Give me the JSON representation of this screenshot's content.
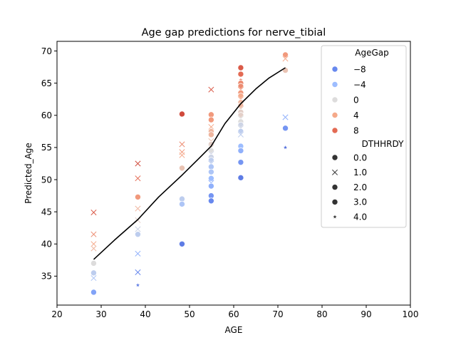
{
  "chart_data": {
    "type": "scatter",
    "title": "Age gap predictions for nerve_tibial",
    "xlabel": "AGE",
    "ylabel": "Predicted_Age",
    "xlim": [
      20,
      100
    ],
    "ylim": [
      30.5,
      71.5
    ],
    "xticks": [
      "20",
      "30",
      "40",
      "50",
      "60",
      "70",
      "80",
      "90",
      "100"
    ],
    "yticks": [
      "35",
      "40",
      "45",
      "50",
      "55",
      "60",
      "65",
      "70"
    ],
    "grid": false,
    "legend_position": "upper right",
    "hue": {
      "title": "AgeGap",
      "entries": [
        {
          "label": "−8",
          "value": -8,
          "color": "#6788ee"
        },
        {
          "label": "−4",
          "value": -4,
          "color": "#9dbdff"
        },
        {
          "label": "0",
          "value": 0,
          "color": "#dddcdc"
        },
        {
          "label": "4",
          "value": 4,
          "color": "#f5a98a"
        },
        {
          "label": "8",
          "value": 8,
          "color": "#e36a53"
        }
      ]
    },
    "style": {
      "title": "DTHHRDY",
      "entries": [
        {
          "label": "0.0",
          "marker": "circle"
        },
        {
          "label": "1.0",
          "marker": "x"
        },
        {
          "label": "2.0",
          "marker": "circle"
        },
        {
          "label": "3.0",
          "marker": "circle"
        },
        {
          "label": "4.0",
          "marker": "star"
        }
      ]
    },
    "points": [
      {
        "x": 28.3,
        "y": 44.9,
        "gap": 9,
        "m": "x"
      },
      {
        "x": 28.3,
        "y": 41.5,
        "gap": 6,
        "m": "x"
      },
      {
        "x": 28.3,
        "y": 40.0,
        "gap": 4,
        "m": "x"
      },
      {
        "x": 28.3,
        "y": 39.3,
        "gap": 3,
        "m": "x"
      },
      {
        "x": 28.3,
        "y": 37.0,
        "gap": 0,
        "m": "circle"
      },
      {
        "x": 28.3,
        "y": 35.5,
        "gap": -2,
        "m": "circle"
      },
      {
        "x": 28.3,
        "y": 34.7,
        "gap": -3,
        "m": "x"
      },
      {
        "x": 28.3,
        "y": 32.5,
        "gap": -6,
        "m": "circle"
      },
      {
        "x": 38.3,
        "y": 52.5,
        "gap": 10,
        "m": "x"
      },
      {
        "x": 38.3,
        "y": 50.2,
        "gap": 8,
        "m": "x"
      },
      {
        "x": 38.3,
        "y": 47.3,
        "gap": 5,
        "m": "circle"
      },
      {
        "x": 38.3,
        "y": 45.5,
        "gap": 3,
        "m": "x"
      },
      {
        "x": 38.3,
        "y": 43.7,
        "gap": 1,
        "m": "x"
      },
      {
        "x": 38.3,
        "y": 42.3,
        "gap": -1,
        "m": "x"
      },
      {
        "x": 38.3,
        "y": 41.5,
        "gap": -2,
        "m": "circle"
      },
      {
        "x": 38.3,
        "y": 38.5,
        "gap": -5,
        "m": "x"
      },
      {
        "x": 38.3,
        "y": 35.6,
        "gap": -8,
        "m": "x"
      },
      {
        "x": 38.3,
        "y": 33.6,
        "gap": -9,
        "m": "star"
      },
      {
        "x": 48.3,
        "y": 60.2,
        "gap": 10,
        "m": "circle"
      },
      {
        "x": 48.3,
        "y": 55.5,
        "gap": 6,
        "m": "x"
      },
      {
        "x": 48.3,
        "y": 54.3,
        "gap": 5,
        "m": "x"
      },
      {
        "x": 48.3,
        "y": 53.8,
        "gap": 4,
        "m": "x"
      },
      {
        "x": 48.3,
        "y": 51.8,
        "gap": 2,
        "m": "circle"
      },
      {
        "x": 48.3,
        "y": 47.0,
        "gap": -2,
        "m": "circle"
      },
      {
        "x": 48.3,
        "y": 46.2,
        "gap": -3,
        "m": "circle"
      },
      {
        "x": 48.3,
        "y": 40.0,
        "gap": -9,
        "m": "circle"
      },
      {
        "x": 54.9,
        "y": 64.0,
        "gap": 9,
        "m": "x"
      },
      {
        "x": 54.9,
        "y": 60.1,
        "gap": 5,
        "m": "circle"
      },
      {
        "x": 54.9,
        "y": 59.3,
        "gap": 5,
        "m": "circle"
      },
      {
        "x": 54.9,
        "y": 58.2,
        "gap": 4,
        "m": "x"
      },
      {
        "x": 54.9,
        "y": 57.5,
        "gap": 3,
        "m": "circle"
      },
      {
        "x": 54.9,
        "y": 57.0,
        "gap": 3,
        "m": "circle"
      },
      {
        "x": 54.9,
        "y": 56.0,
        "gap": 2,
        "m": "x"
      },
      {
        "x": 54.9,
        "y": 55.5,
        "gap": 1,
        "m": "circle"
      },
      {
        "x": 54.9,
        "y": 55.0,
        "gap": 1,
        "m": "x"
      },
      {
        "x": 54.9,
        "y": 54.5,
        "gap": 0,
        "m": "circle"
      },
      {
        "x": 54.9,
        "y": 54.0,
        "gap": -1,
        "m": "x"
      },
      {
        "x": 54.9,
        "y": 53.5,
        "gap": -1,
        "m": "circle"
      },
      {
        "x": 54.9,
        "y": 53.0,
        "gap": -2,
        "m": "circle"
      },
      {
        "x": 54.9,
        "y": 52.5,
        "gap": -2,
        "m": "x"
      },
      {
        "x": 54.9,
        "y": 52.0,
        "gap": -3,
        "m": "circle"
      },
      {
        "x": 54.9,
        "y": 51.2,
        "gap": -3,
        "m": "circle"
      },
      {
        "x": 54.9,
        "y": 50.2,
        "gap": -4,
        "m": "circle"
      },
      {
        "x": 54.9,
        "y": 49.5,
        "gap": -5,
        "m": "x"
      },
      {
        "x": 54.9,
        "y": 49.0,
        "gap": -5,
        "m": "circle"
      },
      {
        "x": 54.9,
        "y": 47.5,
        "gap": -7,
        "m": "circle"
      },
      {
        "x": 54.9,
        "y": 46.7,
        "gap": -8,
        "m": "circle"
      },
      {
        "x": 61.6,
        "y": 67.4,
        "gap": 9,
        "m": "circle"
      },
      {
        "x": 61.6,
        "y": 66.4,
        "gap": 8,
        "m": "circle"
      },
      {
        "x": 61.6,
        "y": 65.5,
        "gap": 7,
        "m": "star"
      },
      {
        "x": 61.6,
        "y": 65.0,
        "gap": 6,
        "m": "circle"
      },
      {
        "x": 61.6,
        "y": 64.5,
        "gap": 6,
        "m": "circle"
      },
      {
        "x": 61.6,
        "y": 64.0,
        "gap": 5,
        "m": "x"
      },
      {
        "x": 61.6,
        "y": 63.5,
        "gap": 5,
        "m": "circle"
      },
      {
        "x": 61.6,
        "y": 63.0,
        "gap": 4,
        "m": "circle"
      },
      {
        "x": 61.6,
        "y": 62.5,
        "gap": 4,
        "m": "x"
      },
      {
        "x": 61.6,
        "y": 62.0,
        "gap": 3,
        "m": "circle"
      },
      {
        "x": 61.6,
        "y": 61.5,
        "gap": 3,
        "m": "circle"
      },
      {
        "x": 61.6,
        "y": 61.0,
        "gap": 2,
        "m": "x"
      },
      {
        "x": 61.6,
        "y": 60.5,
        "gap": 1,
        "m": "circle"
      },
      {
        "x": 61.6,
        "y": 60.0,
        "gap": 1,
        "m": "circle"
      },
      {
        "x": 61.6,
        "y": 59.5,
        "gap": 0,
        "m": "x"
      },
      {
        "x": 61.6,
        "y": 59.0,
        "gap": 0,
        "m": "circle"
      },
      {
        "x": 61.6,
        "y": 58.5,
        "gap": -1,
        "m": "circle"
      },
      {
        "x": 61.6,
        "y": 58.0,
        "gap": -1,
        "m": "x"
      },
      {
        "x": 61.6,
        "y": 57.5,
        "gap": -2,
        "m": "circle"
      },
      {
        "x": 61.6,
        "y": 57.0,
        "gap": -2,
        "m": "x"
      },
      {
        "x": 61.6,
        "y": 55.2,
        "gap": -4,
        "m": "circle"
      },
      {
        "x": 61.6,
        "y": 54.5,
        "gap": -5,
        "m": "circle"
      },
      {
        "x": 61.6,
        "y": 52.7,
        "gap": -7,
        "m": "circle"
      },
      {
        "x": 61.6,
        "y": 50.3,
        "gap": -9,
        "m": "circle"
      },
      {
        "x": 71.7,
        "y": 69.4,
        "gap": 5,
        "m": "circle"
      },
      {
        "x": 71.7,
        "y": 68.8,
        "gap": 4,
        "m": "x"
      },
      {
        "x": 71.7,
        "y": 67.0,
        "gap": 2,
        "m": "circle"
      },
      {
        "x": 71.7,
        "y": 59.7,
        "gap": -5,
        "m": "x"
      },
      {
        "x": 71.7,
        "y": 58.0,
        "gap": -7,
        "m": "circle"
      },
      {
        "x": 71.7,
        "y": 55.0,
        "gap": -10,
        "m": "star"
      }
    ],
    "trend_line": {
      "x": [
        28.3,
        33,
        38.3,
        43,
        48.3,
        52,
        54.9,
        58,
        61.6,
        65,
        68,
        71.7
      ],
      "y": [
        37.6,
        40.6,
        43.8,
        47.3,
        50.7,
        53.2,
        55.2,
        58.7,
        61.8,
        64.1,
        65.8,
        67.4
      ]
    }
  }
}
